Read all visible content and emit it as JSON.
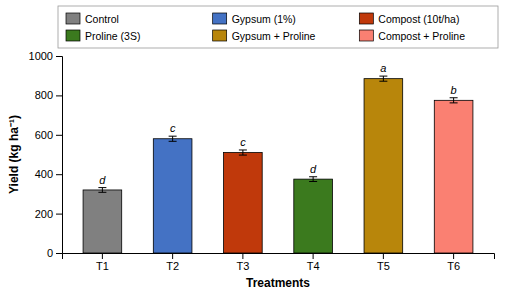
{
  "chart_data": {
    "type": "bar",
    "categories": [
      "T1",
      "T2",
      "T3",
      "T4",
      "T5",
      "T6"
    ],
    "series": [
      {
        "name": "Control",
        "color": "#808080",
        "values": [
          320,
          null,
          null,
          null,
          null,
          null
        ],
        "errors": [
          12,
          null,
          null,
          null,
          null,
          null
        ]
      },
      {
        "name": "Gypsum (1%)",
        "color": "#4472C4",
        "values": [
          null,
          580,
          null,
          null,
          null,
          null
        ],
        "errors": [
          null,
          13,
          null,
          null,
          null,
          null
        ]
      },
      {
        "name": "Compost (10t/ha)",
        "color": "#C0390B",
        "values": [
          null,
          null,
          510,
          null,
          null,
          null
        ],
        "errors": [
          null,
          null,
          13,
          null,
          null,
          null
        ]
      },
      {
        "name": "Proline (3S)",
        "color": "#3B7A1E",
        "values": [
          null,
          null,
          null,
          375,
          null,
          null
        ],
        "errors": [
          null,
          null,
          null,
          12,
          null,
          null
        ]
      },
      {
        "name": "Gypsum + Proline",
        "color": "#B8860B",
        "values": [
          null,
          null,
          null,
          null,
          885,
          null
        ],
        "errors": [
          null,
          null,
          null,
          null,
          13,
          null
        ]
      },
      {
        "name": "Compost + Proline",
        "color": "#FA8072",
        "values": [
          null,
          null,
          null,
          null,
          null,
          775
        ],
        "errors": [
          null,
          null,
          null,
          null,
          null,
          13
        ]
      }
    ],
    "annotations": [
      "d",
      "c",
      "c",
      "d",
      "a",
      "b"
    ],
    "x_label": "Treatments",
    "y_label": "Yield (kg ha⁻¹)",
    "ylim": [
      0,
      1000
    ],
    "yticks": [
      0,
      200,
      400,
      600,
      800,
      1000
    ],
    "legend": "top"
  }
}
